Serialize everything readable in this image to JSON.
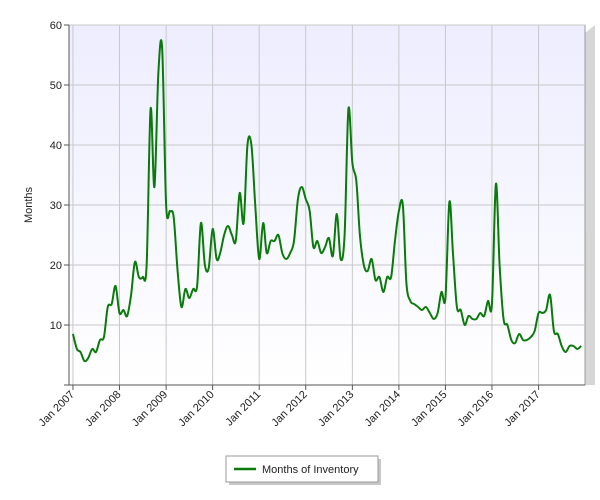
{
  "chart_data": {
    "type": "line",
    "title": "",
    "xlabel": "",
    "ylabel": "Months",
    "ylim": [
      0,
      60
    ],
    "yticks": [
      10,
      20,
      30,
      40,
      50,
      60
    ],
    "xlim": [
      "2006-12-01",
      "2017-12-31"
    ],
    "xticks": [
      "Jan 2007",
      "Jan 2008",
      "Jan 2009",
      "Jan 2010",
      "Jan 2011",
      "Jan 2012",
      "Jan 2013",
      "Jan 2014",
      "Jan 2015",
      "Jan 2016",
      "Jan 2017"
    ],
    "grid": true,
    "legend": "bottom-center",
    "colors": {
      "line": "#0a7a0a",
      "plot_bg_top": "#ededff",
      "plot_bg_bottom": "#ffffff",
      "grid": "#c8c8c8"
    },
    "series": [
      {
        "name": "Months of Inventory",
        "x": [
          "2007-01",
          "2007-02",
          "2007-03",
          "2007-04",
          "2007-05",
          "2007-06",
          "2007-07",
          "2007-08",
          "2007-09",
          "2007-10",
          "2007-11",
          "2007-12",
          "2008-01",
          "2008-02",
          "2008-03",
          "2008-04",
          "2008-05",
          "2008-06",
          "2008-07",
          "2008-08",
          "2008-09",
          "2008-10",
          "2008-11",
          "2008-12",
          "2009-01",
          "2009-02",
          "2009-03",
          "2009-04",
          "2009-05",
          "2009-06",
          "2009-07",
          "2009-08",
          "2009-09",
          "2009-10",
          "2009-11",
          "2009-12",
          "2010-01",
          "2010-02",
          "2010-03",
          "2010-04",
          "2010-05",
          "2010-06",
          "2010-07",
          "2010-08",
          "2010-09",
          "2010-10",
          "2010-11",
          "2010-12",
          "2011-01",
          "2011-02",
          "2011-03",
          "2011-04",
          "2011-05",
          "2011-06",
          "2011-07",
          "2011-08",
          "2011-09",
          "2011-10",
          "2011-11",
          "2011-12",
          "2012-01",
          "2012-02",
          "2012-03",
          "2012-04",
          "2012-05",
          "2012-06",
          "2012-07",
          "2012-08",
          "2012-09",
          "2012-10",
          "2012-11",
          "2012-12",
          "2013-01",
          "2013-02",
          "2013-03",
          "2013-04",
          "2013-05",
          "2013-06",
          "2013-07",
          "2013-08",
          "2013-09",
          "2013-10",
          "2013-11",
          "2013-12",
          "2014-01",
          "2014-02",
          "2014-03",
          "2014-04",
          "2014-05",
          "2014-06",
          "2014-07",
          "2014-08",
          "2014-09",
          "2014-10",
          "2014-11",
          "2014-12",
          "2015-01",
          "2015-02",
          "2015-03",
          "2015-04",
          "2015-05",
          "2015-06",
          "2015-07",
          "2015-08",
          "2015-09",
          "2015-10",
          "2015-11",
          "2015-12",
          "2016-01",
          "2016-02",
          "2016-03",
          "2016-04",
          "2016-05",
          "2016-06",
          "2016-07",
          "2016-08",
          "2016-09",
          "2016-10",
          "2016-11",
          "2016-12",
          "2017-01",
          "2017-02",
          "2017-03",
          "2017-04",
          "2017-05",
          "2017-06",
          "2017-07",
          "2017-08",
          "2017-09",
          "2017-10",
          "2017-11",
          "2017-12"
        ],
        "values": [
          8.5,
          6,
          5.5,
          4,
          4.5,
          6,
          5.5,
          7.5,
          8,
          13,
          13.5,
          16.5,
          12,
          12.5,
          11.5,
          15,
          20.5,
          18,
          18,
          20,
          46,
          33,
          52,
          56,
          30,
          29,
          28,
          19,
          13,
          16,
          14.5,
          16,
          16.5,
          27,
          20,
          19.5,
          26,
          21,
          22,
          25,
          26.5,
          25,
          24,
          32,
          27,
          40,
          40,
          30,
          21,
          27,
          22,
          24,
          24,
          25,
          22,
          21,
          22,
          24,
          31,
          33,
          31,
          29,
          23,
          24,
          22,
          23,
          24.5,
          21.5,
          28.5,
          21,
          25,
          46,
          37,
          34,
          25,
          20,
          19,
          21,
          17.5,
          18,
          15.5,
          18,
          18,
          24,
          29,
          30,
          17,
          14,
          13.5,
          13,
          12.5,
          13,
          12,
          11,
          12,
          15.5,
          14.5,
          30.5,
          22,
          13,
          12.5,
          10,
          11.5,
          11,
          11,
          12,
          11.5,
          14,
          13.5,
          33.5,
          20,
          11,
          10,
          7.5,
          7,
          8.5,
          7.5,
          7.5,
          8,
          9,
          12,
          12,
          12.5,
          15,
          9,
          8.5,
          6.5,
          5.5,
          6.5,
          6.5,
          6,
          6.5
        ]
      }
    ]
  }
}
